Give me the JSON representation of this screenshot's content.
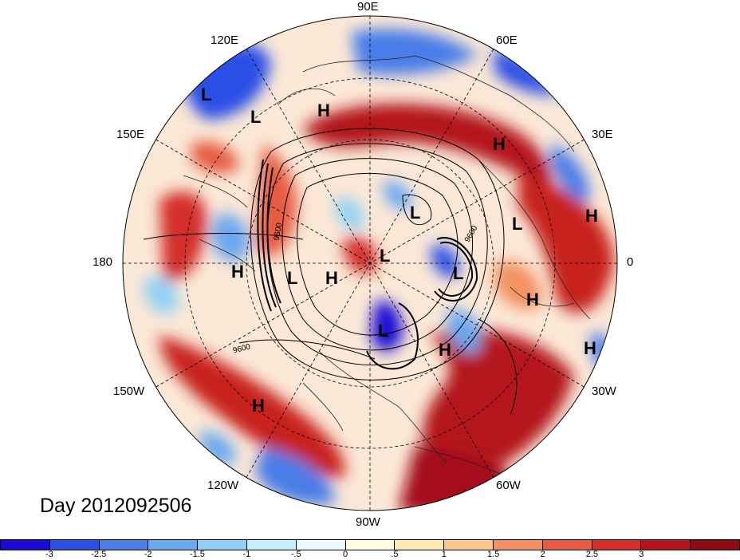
{
  "date_label": "Day 2012092506",
  "longitude_labels": [
    {
      "key": "lon-90e",
      "text": "90E"
    },
    {
      "key": "lon-60e",
      "text": "60E"
    },
    {
      "key": "lon-30e",
      "text": "30E"
    },
    {
      "key": "lon-0",
      "text": "0"
    },
    {
      "key": "lon-30w",
      "text": "30W"
    },
    {
      "key": "lon-60w",
      "text": "60W"
    },
    {
      "key": "lon-90w",
      "text": "90W"
    },
    {
      "key": "lon-120w",
      "text": "120W"
    },
    {
      "key": "lon-150w",
      "text": "150W"
    },
    {
      "key": "lon-180",
      "text": "180"
    },
    {
      "key": "lon-150e",
      "text": "150E"
    },
    {
      "key": "lon-120e",
      "text": "120E"
    }
  ],
  "pressure_centers": [
    "L",
    "L",
    "H",
    "H",
    "H",
    "L",
    "L",
    "L",
    "L",
    "L",
    "H",
    "H",
    "L",
    "H",
    "H",
    "H"
  ],
  "contour_labels": [
    "9600",
    "9600",
    "9600"
  ],
  "colorbar": {
    "colors": [
      "#1a0bd6",
      "#2c4fe6",
      "#4a7de8",
      "#6aa8f0",
      "#8fd0f7",
      "#c5eefc",
      "#eafaff",
      "#fffce0",
      "#fdeab2",
      "#fbc68a",
      "#f29262",
      "#e65b42",
      "#d42d2b",
      "#b3141d",
      "#8e0b14"
    ],
    "tick_labels": [
      "-3",
      "-2.5",
      "-2",
      "-1.5",
      "-1",
      "-.5",
      "0",
      ".5",
      "1",
      "1.5",
      "2",
      "2.5",
      "3"
    ]
  }
}
